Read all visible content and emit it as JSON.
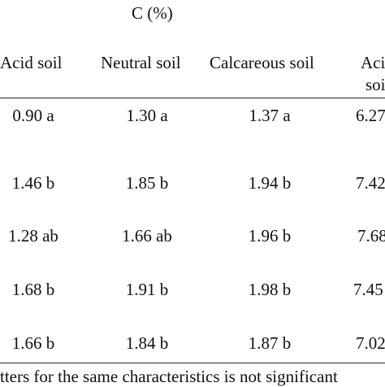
{
  "table": {
    "group_header": "C (%)",
    "columns": [
      "Acid soil",
      "Neutral soil",
      "Calcareous soil",
      "Aci",
      "soi"
    ],
    "rows": [
      {
        "acid": "0.90 a",
        "neutral": "1.30 a",
        "calcareous": "1.37 a",
        "next": "6.27"
      },
      {
        "acid": "1.46 b",
        "neutral": "1.85 b",
        "calcareous": "1.94 b",
        "next": "7.42"
      },
      {
        "acid": "1.28 ab",
        "neutral": "1.66 ab",
        "calcareous": "1.96 b",
        "next": "7.68"
      },
      {
        "acid": "1.68 b",
        "neutral": "1.91 b",
        "calcareous": "1.98 b",
        "next": "7.45"
      },
      {
        "acid": "1.66 b",
        "neutral": "1.84 b",
        "calcareous": "1.87 b",
        "next": "7.02"
      }
    ],
    "footnote": "tters for the same characteristics is not significant"
  }
}
